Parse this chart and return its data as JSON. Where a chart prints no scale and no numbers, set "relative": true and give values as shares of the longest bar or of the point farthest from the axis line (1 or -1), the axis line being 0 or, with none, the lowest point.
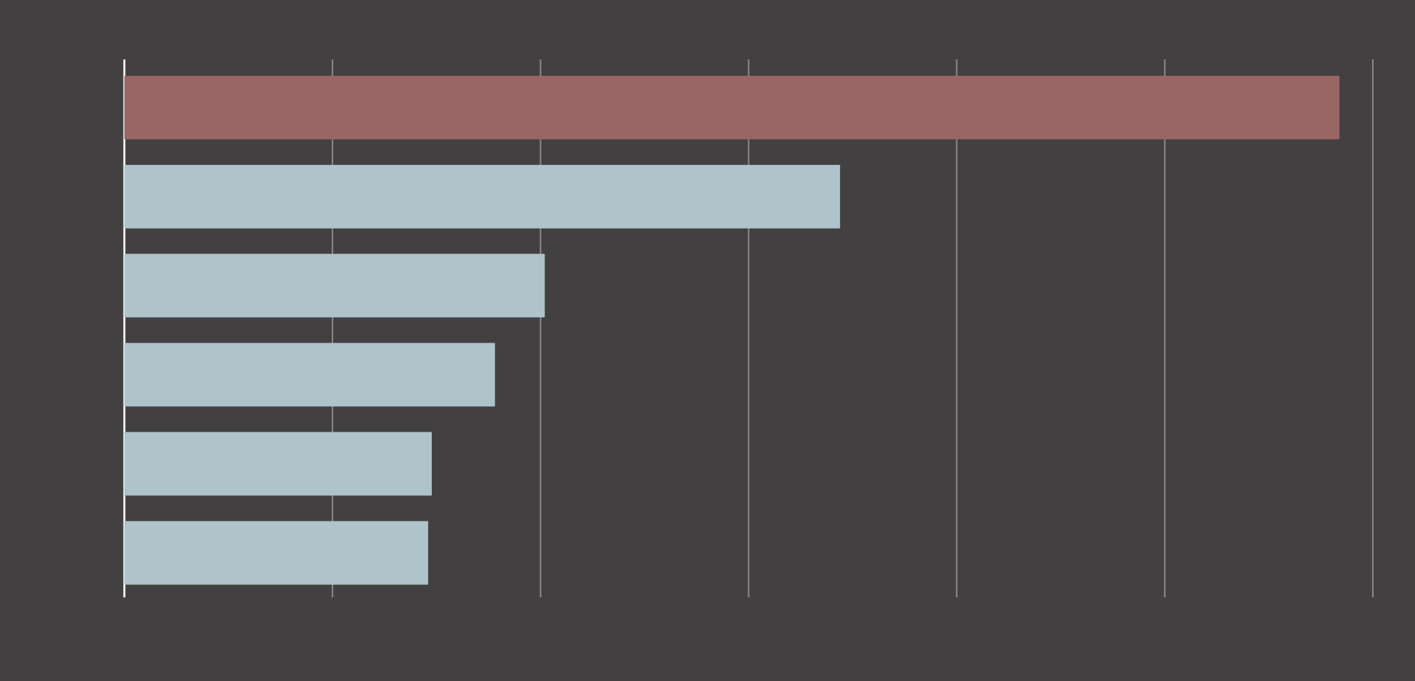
{
  "chart_data": {
    "type": "bar",
    "orientation": "horizontal",
    "relative": true,
    "grid": "x",
    "categories": [
      null,
      null,
      null,
      null,
      null,
      null
    ],
    "values": [
      1,
      0.589,
      0.346,
      0.305,
      0.253,
      0.25
    ],
    "colors": [
      "#996665",
      "#afc3ca",
      "#afc3ca",
      "#afc3ca",
      "#afc3ca",
      "#afc3ca"
    ]
  }
}
